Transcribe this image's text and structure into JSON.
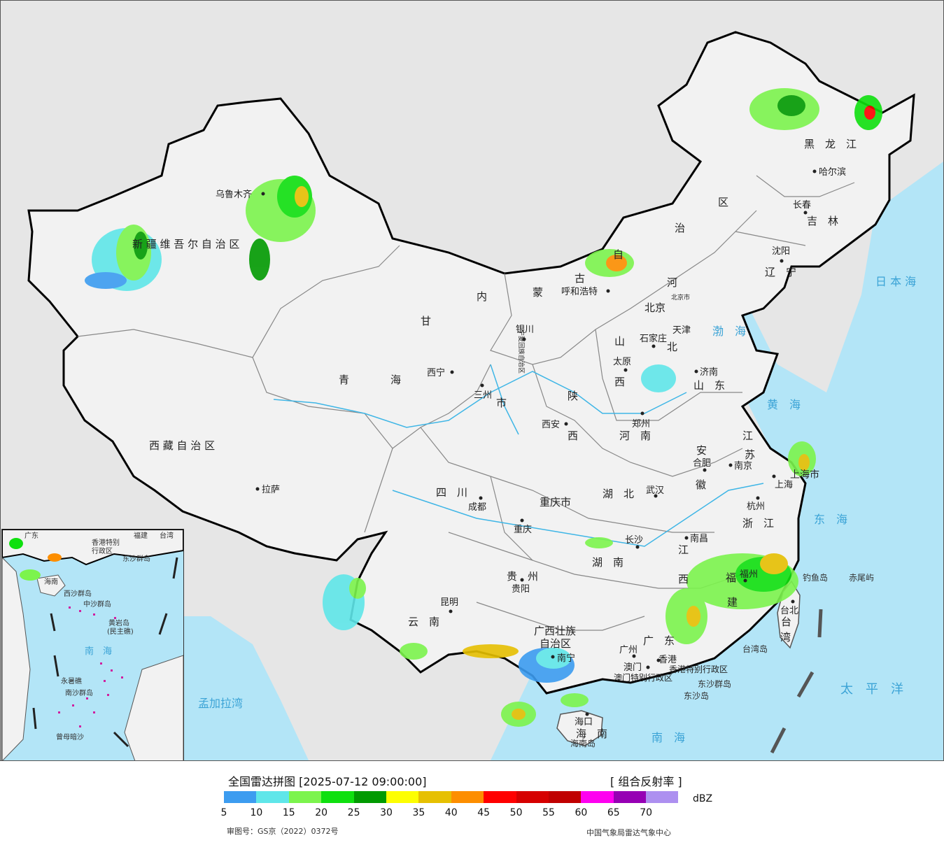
{
  "map": {
    "provinces": [
      "新疆维吾尔自治区",
      "西藏自治区",
      "青海",
      "甘肃",
      "内蒙古自治区",
      "黑龙江",
      "吉林",
      "辽宁",
      "河北",
      "山西",
      "陕西",
      "宁夏回族自治区",
      "四川",
      "重庆市",
      "云南",
      "贵州",
      "广西壮族自治区",
      "广东",
      "湖南",
      "湖北",
      "河南",
      "山东",
      "江苏",
      "安徽",
      "浙江",
      "江西",
      "福建",
      "台湾",
      "海南",
      "上海市",
      "北京市",
      "天津",
      "香港特别行政区",
      "澳门特别行政区"
    ],
    "province_labels": {
      "xinjiang": "新 疆 维 吾 尔 自 治 区",
      "xizang": "西 藏 自 治 区",
      "qinghai_1": "青",
      "qinghai_2": "海",
      "gansu": "甘",
      "neimeng_1": "内",
      "neimeng_2": "蒙",
      "neimeng_3": "古",
      "neimeng_4": "自",
      "neimeng_5": "治",
      "neimeng_6": "区",
      "heilongjiang": "黑　龙　江",
      "jilin": "吉　林",
      "liaoning": "辽　宁",
      "hebei_1": "河",
      "hebei_2": "北",
      "shanxi_1": "山",
      "shanxi_2": "西",
      "shaanxi_1": "陕",
      "shaanxi_2": "西",
      "ningxia": "宁夏回族自治区",
      "sichuan": "四　川",
      "chongqing": "重庆市",
      "yunnan": "云　南",
      "guizhou": "贵　州",
      "guangxi_1": "广西壮族",
      "guangxi_2": "自治区",
      "guangdong": "广　东",
      "hunan": "湖　南",
      "hubei": "湖　北",
      "henan": "河　南",
      "shandong": "山　东",
      "jiangsu_1": "江",
      "jiangsu_2": "苏",
      "anhui_1": "安",
      "anhui_2": "徽",
      "zhejiang": "浙　江",
      "jiangxi_1": "江",
      "jiangxi_2": "西",
      "fujian_1": "福",
      "fujian_2": "建",
      "taiwan_1": "台",
      "taiwan_2": "湾",
      "hainan": "海　南",
      "shanghai": "上海市",
      "beijing_label": "北京",
      "beijing_small": "北京市",
      "tianjin": "天津",
      "hongkong": "香港特别行政区",
      "macau": "澳门特别行政区",
      "gansu_city": "市"
    },
    "cities": [
      {
        "id": "urumqi",
        "name": "乌鲁木齐"
      },
      {
        "id": "lhasa",
        "name": "拉萨"
      },
      {
        "id": "xining",
        "name": "西宁"
      },
      {
        "id": "lanzhou",
        "name": "三州"
      },
      {
        "id": "yinchuan",
        "name": "银川"
      },
      {
        "id": "hohhot",
        "name": "呼和浩特"
      },
      {
        "id": "harbin",
        "name": "哈尔滨"
      },
      {
        "id": "changchun",
        "name": "长春"
      },
      {
        "id": "shenyang",
        "name": "沈阳"
      },
      {
        "id": "shijiazhuang",
        "name": "石家庄"
      },
      {
        "id": "taiyuan",
        "name": "太原"
      },
      {
        "id": "jinan",
        "name": "济南"
      },
      {
        "id": "zhengzhou",
        "name": "郑州"
      },
      {
        "id": "xian",
        "name": "西安"
      },
      {
        "id": "chengdu",
        "name": "成都"
      },
      {
        "id": "chongqing_city",
        "name": "重庆"
      },
      {
        "id": "wuhan",
        "name": "武汉"
      },
      {
        "id": "hefei",
        "name": "合肥"
      },
      {
        "id": "nanjing",
        "name": "南京"
      },
      {
        "id": "shanghai_city",
        "name": "上海"
      },
      {
        "id": "hangzhou",
        "name": "杭州"
      },
      {
        "id": "nanchang",
        "name": "南昌"
      },
      {
        "id": "changsha",
        "name": "长沙"
      },
      {
        "id": "guiyang",
        "name": "贵阳"
      },
      {
        "id": "kunming",
        "name": "昆明"
      },
      {
        "id": "nanning",
        "name": "南宁"
      },
      {
        "id": "guangzhou",
        "name": "广州"
      },
      {
        "id": "fuzhou",
        "name": "福州"
      },
      {
        "id": "taibei",
        "name": "台北"
      },
      {
        "id": "haikou",
        "name": "海口"
      },
      {
        "id": "macau_city",
        "name": "澳门"
      },
      {
        "id": "hongkong_city",
        "name": "香港"
      }
    ],
    "seas": {
      "bohai": "渤　海",
      "huanghai": "黄　海",
      "donghai": "东　海",
      "nanhai": "南　海",
      "taipingyang": "太　平　洋",
      "ribenhai": "日 本 海",
      "mengjiala": "孟加拉湾"
    },
    "islands": {
      "diaoyu": "钓鱼岛",
      "chiwei": "赤尾屿",
      "taiwan_island": "台湾岛",
      "dongsha": "东沙群岛",
      "dongsha_dao": "东沙岛",
      "hainan_dao": "海南岛"
    },
    "inset_labels": {
      "nanhai": "南　海",
      "xisha": "西沙群岛",
      "zhongsha": "中沙群岛",
      "huangyan": "黄岩岛",
      "minzhu": "(民主礁)",
      "nansha": "南沙群岛",
      "yongshu": "永暑礁",
      "zengmu": "曾母暗沙",
      "dongsha": "东沙群岛",
      "hongkong": "香港特别",
      "hk2": "行政区",
      "taiwan": "台湾",
      "hainan": "海南",
      "guangdong": "广东",
      "fujian": "福建"
    },
    "colors": {
      "land": "#f2f2f2",
      "outside": "#e6e6e6",
      "sea": "#b3e5f7",
      "border": "#000000",
      "province_line": "#888888",
      "river": "#3fb6e6"
    }
  },
  "legend": {
    "title": "全国雷达拼图 [2025-07-12 09:00:00]",
    "product": "[ 组合反射率 ]",
    "unit": "dBZ",
    "ticks": [
      "5",
      "10",
      "15",
      "20",
      "25",
      "30",
      "35",
      "40",
      "45",
      "50",
      "55",
      "60",
      "65",
      "70"
    ],
    "colors": [
      "#3c9cf0",
      "#5fe6e9",
      "#7cf44d",
      "#0fe00f",
      "#019a01",
      "#fdfe02",
      "#e6c002",
      "#fd8e00",
      "#ff0000",
      "#d60000",
      "#c00000",
      "#fe00f0",
      "#9600b4",
      "#ad90f0"
    ]
  },
  "footer": {
    "approval": "审图号：GS京（2022）0372号",
    "agency": "中国气象局雷达气象中心"
  }
}
